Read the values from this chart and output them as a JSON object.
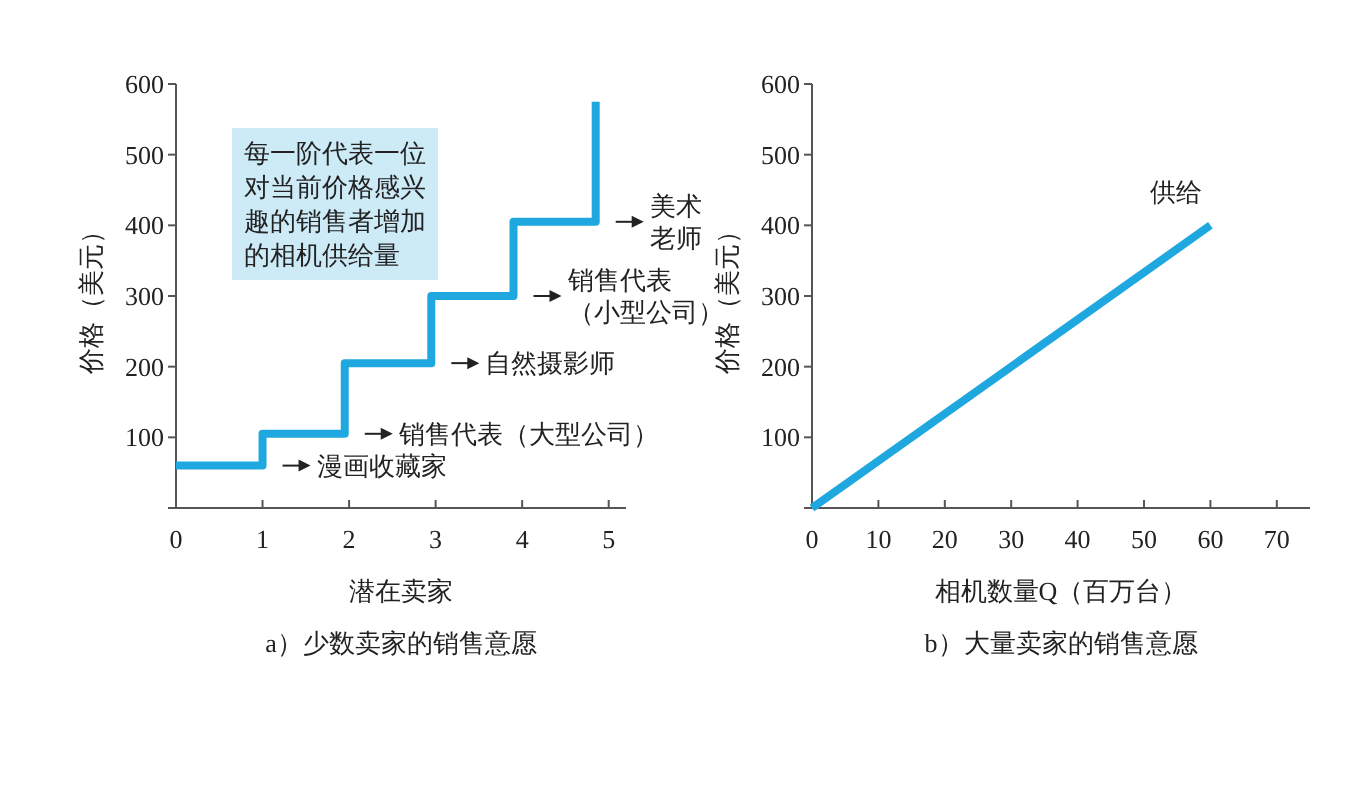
{
  "chart_data": [
    {
      "type": "step",
      "title": "a）少数卖家的销售意愿",
      "xlabel": "潜在卖家",
      "ylabel": "价格（美元）",
      "x": [
        0,
        1,
        1.95,
        2.95,
        3.9,
        4.85
      ],
      "values": [
        60,
        105,
        205,
        300,
        405,
        575
      ],
      "color": "#1fa8e0",
      "xlim": [
        0,
        5.2
      ],
      "ylim": [
        0,
        600
      ],
      "xticks": [
        0,
        1,
        2,
        3,
        4,
        5
      ],
      "yticks": [
        {
          "value": 0,
          "label": null
        },
        100,
        200,
        300,
        400,
        500,
        600
      ],
      "annotations": [
        "每一阶代表一位对当前价格感兴趣的销售者增加的相机供给量",
        "漫画收藏家",
        "销售代表（大型公司）",
        "自然摄影师",
        "销售代表（小型公司）",
        "美术老师"
      ]
    },
    {
      "type": "line",
      "title": "b）大量卖家的销售意愿",
      "xlabel": "相机数量Q（百万台）",
      "ylabel": "价格（美元）",
      "x": [
        0,
        60
      ],
      "series": [
        {
          "name": "供给",
          "color": "#1fa8e0",
          "values": [
            0,
            400
          ]
        }
      ],
      "xlim": [
        0,
        75
      ],
      "ylim": [
        0,
        600
      ],
      "xticks": [
        0,
        10,
        20,
        30,
        40,
        50,
        60,
        70
      ],
      "yticks": [
        {
          "value": 0,
          "label": null
        },
        100,
        200,
        300,
        400,
        500,
        600
      ]
    }
  ]
}
